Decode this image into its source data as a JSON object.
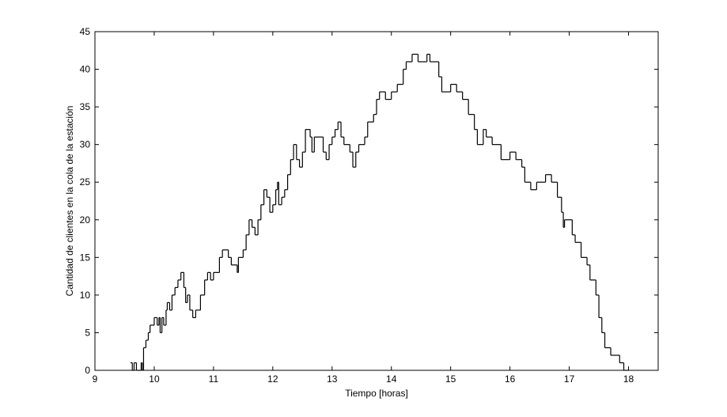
{
  "chart_data": {
    "type": "stairs",
    "x_label": "Tiempo [horas]",
    "y_label": "Cantidad de clientes en la cola de la estación",
    "xlim": [
      9,
      18.5
    ],
    "ylim": [
      0,
      45
    ],
    "xticks": [
      9,
      10,
      11,
      12,
      13,
      14,
      15,
      16,
      17,
      18
    ],
    "yticks": [
      0,
      5,
      10,
      15,
      20,
      25,
      30,
      35,
      40,
      45
    ],
    "grid": false,
    "series": [
      {
        "color": "#000000",
        "x": [
          9.6,
          9.63,
          9.66,
          9.7,
          9.78,
          9.8,
          9.82,
          9.86,
          9.9,
          9.93,
          10.0,
          10.05,
          10.08,
          10.1,
          10.13,
          10.16,
          10.2,
          10.22,
          10.26,
          10.3,
          10.35,
          10.4,
          10.45,
          10.5,
          10.53,
          10.56,
          10.6,
          10.65,
          10.7,
          10.78,
          10.85,
          10.9,
          10.95,
          11.0,
          11.1,
          11.15,
          11.25,
          11.3,
          11.4,
          11.42,
          11.5,
          11.55,
          11.6,
          11.65,
          11.7,
          11.75,
          11.8,
          11.85,
          11.9,
          11.95,
          12.0,
          12.05,
          12.08,
          12.1,
          12.15,
          12.2,
          12.25,
          12.3,
          12.35,
          12.4,
          12.45,
          12.5,
          12.55,
          12.63,
          12.66,
          12.7,
          12.85,
          12.9,
          12.95,
          13.0,
          13.05,
          13.1,
          13.15,
          13.2,
          13.3,
          13.35,
          13.4,
          13.45,
          13.55,
          13.6,
          13.7,
          13.75,
          13.8,
          13.9,
          14.0,
          14.1,
          14.2,
          14.25,
          14.35,
          14.45,
          14.6,
          14.65,
          14.8,
          14.85,
          15.0,
          15.1,
          15.2,
          15.3,
          15.4,
          15.45,
          15.55,
          15.6,
          15.7,
          15.85,
          16.0,
          16.1,
          16.2,
          16.25,
          16.35,
          16.45,
          16.6,
          16.7,
          16.8,
          16.87,
          16.9,
          16.92,
          17.05,
          17.1,
          17.2,
          17.3,
          17.35,
          17.45,
          17.5,
          17.55,
          17.6,
          17.7,
          17.85,
          17.92,
          18.0
        ],
        "values": [
          1,
          0,
          1,
          0,
          1,
          0,
          3,
          4,
          5,
          6,
          7,
          6,
          7,
          5,
          7,
          6,
          8,
          9,
          8,
          10,
          11,
          12,
          13,
          11,
          9,
          10,
          8,
          7,
          8,
          10,
          12,
          13,
          12,
          13,
          15,
          16,
          15,
          14,
          13,
          15,
          16,
          18,
          20,
          19,
          18,
          20,
          22,
          24,
          23,
          21,
          22,
          24,
          25,
          22,
          23,
          24,
          26,
          28,
          30,
          28,
          27,
          29,
          32,
          31,
          29,
          31,
          29,
          28,
          30,
          31,
          32,
          33,
          31,
          30,
          29,
          27,
          29,
          30,
          31,
          33,
          34,
          36,
          37,
          36,
          37,
          38,
          40,
          41,
          42,
          41,
          42,
          41,
          39,
          37,
          38,
          37,
          36,
          34,
          32,
          30,
          32,
          31,
          30,
          28,
          29,
          28,
          27,
          25,
          24,
          25,
          26,
          25,
          23,
          21,
          19,
          20,
          18,
          17,
          15,
          14,
          12,
          10,
          7,
          5,
          3,
          2,
          1,
          0,
          0
        ]
      }
    ]
  }
}
